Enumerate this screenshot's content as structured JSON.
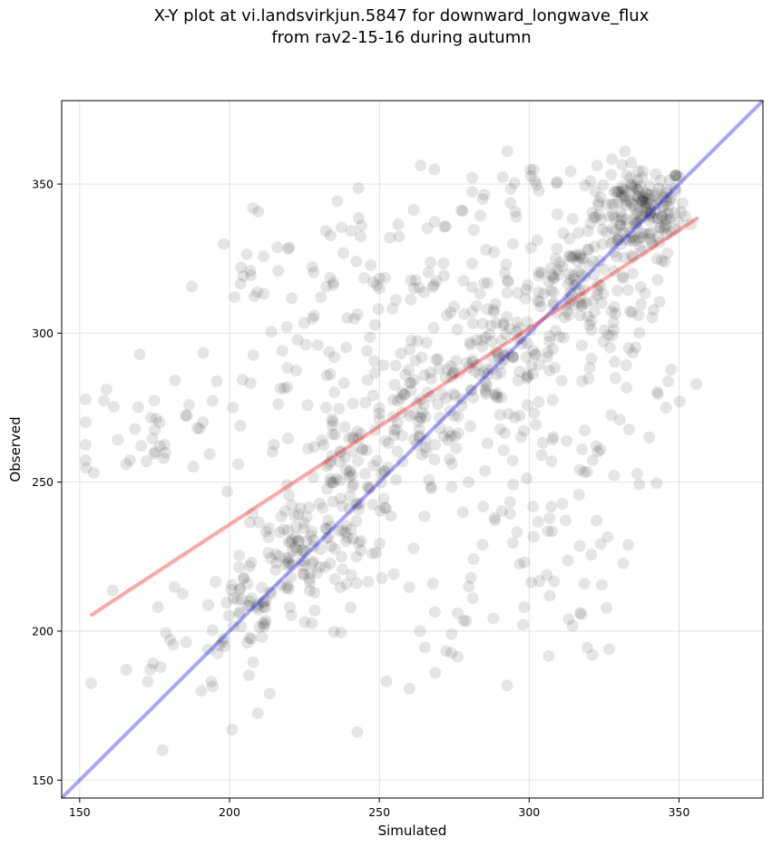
{
  "chart_data": {
    "type": "scatter",
    "title_line1": "X-Y plot at vi.landsvirkjun.5847 for downward_longwave_flux",
    "title_line2": "from rav2-15-16 during autumn",
    "xlabel": "Simulated",
    "ylabel": "Observed",
    "xlim": [
      144,
      378
    ],
    "ylim": [
      144,
      378
    ],
    "xticks": [
      150,
      200,
      250,
      300,
      350
    ],
    "yticks": [
      150,
      200,
      250,
      300,
      350
    ],
    "grid": true,
    "point_color": "#000000",
    "point_alpha": 0.1,
    "identity_line": {
      "color": "#0000ff",
      "from": [
        144,
        144
      ],
      "to": [
        378,
        378
      ]
    },
    "regression_line": {
      "color": "#ff0000",
      "from": [
        154,
        205.5
      ],
      "to": [
        356,
        338.5
      ]
    },
    "clusters": [
      {
        "x": 337,
        "y": 341,
        "sx": 8,
        "sy": 8,
        "n": 180
      },
      {
        "x": 315,
        "y": 318,
        "sx": 8,
        "sy": 9,
        "n": 90
      },
      {
        "x": 290,
        "y": 292,
        "sx": 10,
        "sy": 11,
        "n": 100
      },
      {
        "x": 265,
        "y": 270,
        "sx": 10,
        "sy": 13,
        "n": 90
      },
      {
        "x": 240,
        "y": 248,
        "sx": 9,
        "sy": 12,
        "n": 90
      },
      {
        "x": 222,
        "y": 225,
        "sx": 9,
        "sy": 10,
        "n": 80
      },
      {
        "x": 208,
        "y": 208,
        "sx": 8,
        "sy": 8,
        "n": 50
      },
      {
        "x": 175,
        "y": 268,
        "sx": 12,
        "sy": 9,
        "n": 40
      },
      {
        "x": 300,
        "y": 240,
        "sx": 18,
        "sy": 25,
        "n": 90
      },
      {
        "x": 260,
        "y": 320,
        "sx": 25,
        "sy": 15,
        "n": 80
      },
      {
        "x": 330,
        "y": 300,
        "sx": 12,
        "sy": 18,
        "n": 60
      },
      {
        "x": 230,
        "y": 285,
        "sx": 20,
        "sy": 20,
        "n": 70
      },
      {
        "x": 185,
        "y": 190,
        "sx": 14,
        "sy": 15,
        "n": 25
      },
      {
        "x": 270,
        "y": 200,
        "sx": 20,
        "sy": 12,
        "n": 25
      },
      {
        "x": 210,
        "y": 315,
        "sx": 6,
        "sy": 4,
        "n": 10
      },
      {
        "x": 300,
        "y": 350,
        "sx": 18,
        "sy": 5,
        "n": 25
      }
    ]
  }
}
